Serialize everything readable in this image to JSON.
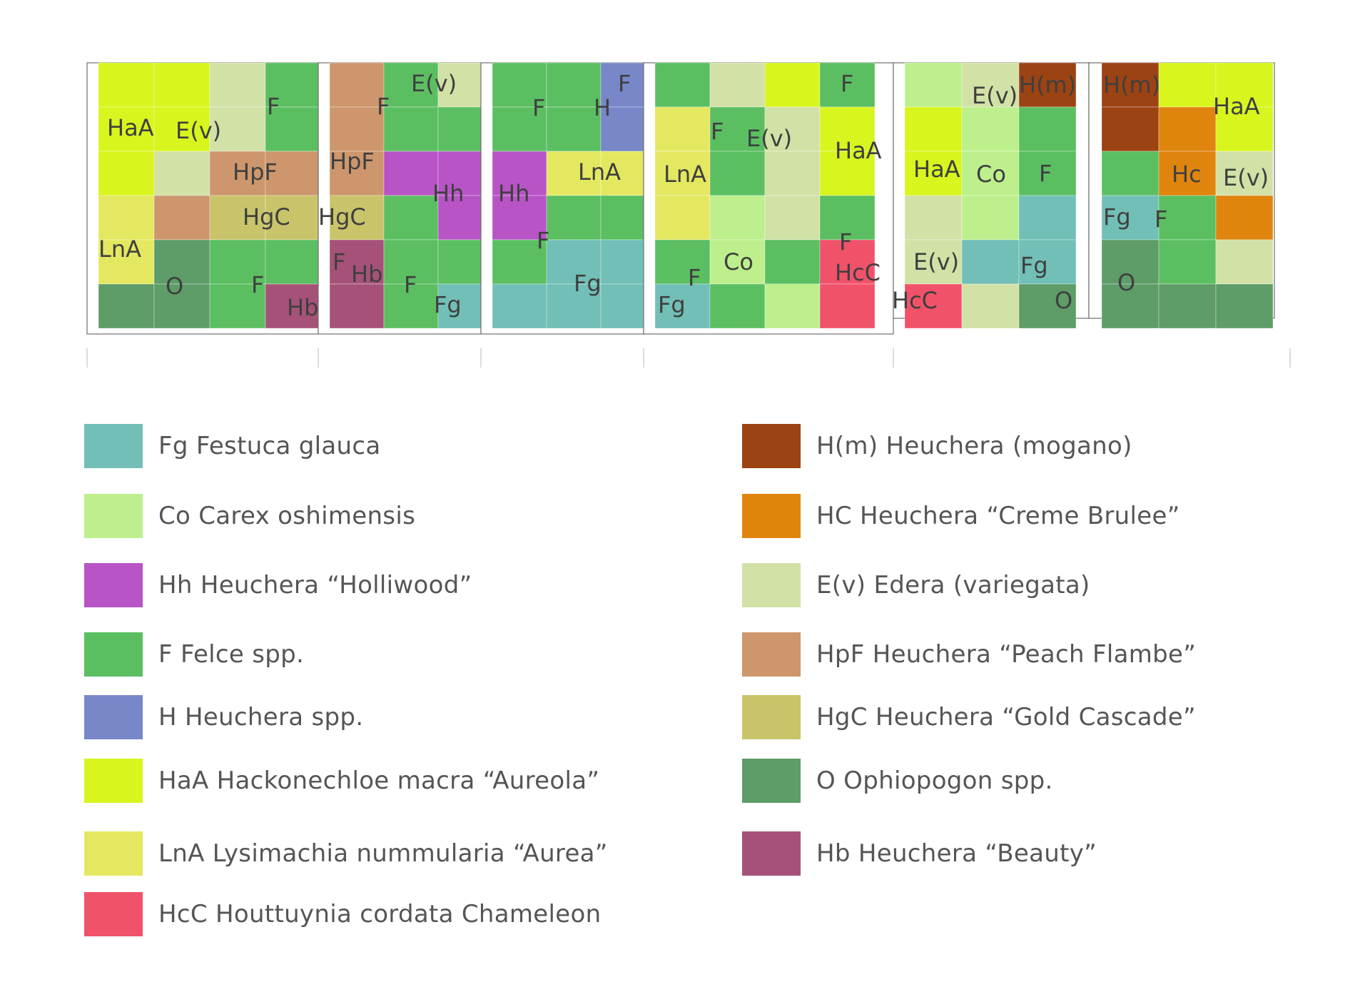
{
  "colors": {
    "Fg": "#72bfb7",
    "Co": "#bdf08c",
    "Hh": "#b854c6",
    "F": "#5bbf62",
    "H": "#7887c8",
    "HaA": "#d8f51e",
    "LnA": "#e4e860",
    "HcC": "#f0526a",
    "Hm": "#9c4313",
    "Hc": "#df850e",
    "Ev": "#d2e1a6",
    "HpF": "#cd966c",
    "HgC": "#c9c46a",
    "O": "#5e9c68",
    "Hb": "#a65278"
  },
  "modules": [
    {
      "cells": [
        {
          "c": "HaA",
          "r": 0,
          "k": 0
        },
        {
          "c": "HaA",
          "r": 0,
          "k": 1
        },
        {
          "c": "Ev",
          "r": 0,
          "k": 2
        },
        {
          "c": "F",
          "r": 0,
          "k": 3
        },
        {
          "c": "HaA",
          "r": 1,
          "k": 0
        },
        {
          "c": "HaA",
          "r": 1,
          "k": 1
        },
        {
          "c": "Ev",
          "r": 1,
          "k": 2
        },
        {
          "c": "F",
          "r": 1,
          "k": 3
        },
        {
          "c": "HaA",
          "r": 2,
          "k": 0
        },
        {
          "c": "Ev",
          "r": 2,
          "k": 1
        },
        {
          "c": "HpF",
          "r": 2,
          "k": 2
        },
        {
          "c": "HpF",
          "r": 2,
          "k": 3
        },
        {
          "c": "LnA",
          "r": 3,
          "k": 0
        },
        {
          "c": "HpF",
          "r": 3,
          "k": 1
        },
        {
          "c": "HgC",
          "r": 3,
          "k": 2
        },
        {
          "c": "HgC",
          "r": 3,
          "k": 3
        },
        {
          "c": "LnA",
          "r": 4,
          "k": 0
        },
        {
          "c": "O",
          "r": 4,
          "k": 1
        },
        {
          "c": "F",
          "r": 4,
          "k": 2
        },
        {
          "c": "F",
          "r": 4,
          "k": 3
        },
        {
          "c": "O",
          "r": 5,
          "k": 0
        },
        {
          "c": "O",
          "r": 5,
          "k": 1
        },
        {
          "c": "F",
          "r": 5,
          "k": 2
        },
        {
          "c": "Hb",
          "r": 5,
          "k": 3
        }
      ],
      "labels": [
        "HaA",
        "E(v)",
        "F",
        "HpF",
        "HgC",
        "LnA",
        "O",
        "F",
        "Hb"
      ]
    },
    {
      "cells": [
        {
          "c": "HpF",
          "r": 0,
          "k": 0
        },
        {
          "c": "F",
          "r": 0,
          "k": 1
        },
        {
          "c": "Ev",
          "r": 0,
          "k": 2
        },
        {
          "c": "HpF",
          "r": 1,
          "k": 0
        },
        {
          "c": "F",
          "r": 1,
          "k": 1
        },
        {
          "c": "F",
          "r": 1,
          "k": 2
        },
        {
          "c": "HpF",
          "r": 2,
          "k": 0
        },
        {
          "c": "Hh",
          "r": 2,
          "k": 1
        },
        {
          "c": "Hh",
          "r": 2,
          "k": 2
        },
        {
          "c": "HgC",
          "r": 3,
          "k": 0
        },
        {
          "c": "F",
          "r": 3,
          "k": 1
        },
        {
          "c": "Hh",
          "r": 3,
          "k": 2
        },
        {
          "c": "Hb",
          "r": 4,
          "k": 0
        },
        {
          "c": "F",
          "r": 4,
          "k": 1
        },
        {
          "c": "F",
          "r": 4,
          "k": 2
        },
        {
          "c": "Hb",
          "r": 5,
          "k": 0
        },
        {
          "c": "F",
          "r": 5,
          "k": 1
        },
        {
          "c": "Fg",
          "r": 5,
          "k": 2
        }
      ],
      "labels": [
        "E(v)",
        "F",
        "HpF",
        "Hh",
        "HgC",
        "F",
        "Hb",
        "F",
        "Fg"
      ]
    },
    {
      "cells": [
        {
          "c": "F",
          "r": 0,
          "k": 0
        },
        {
          "c": "F",
          "r": 0,
          "k": 1
        },
        {
          "c": "H",
          "r": 0,
          "k": 2
        },
        {
          "c": "F",
          "r": 1,
          "k": 0
        },
        {
          "c": "F",
          "r": 1,
          "k": 1
        },
        {
          "c": "H",
          "r": 1,
          "k": 2
        },
        {
          "c": "Hh",
          "r": 2,
          "k": 0
        },
        {
          "c": "LnA",
          "r": 2,
          "k": 1
        },
        {
          "c": "LnA",
          "r": 2,
          "k": 2
        },
        {
          "c": "Hh",
          "r": 3,
          "k": 0
        },
        {
          "c": "F",
          "r": 3,
          "k": 1
        },
        {
          "c": "F",
          "r": 3,
          "k": 2
        },
        {
          "c": "F",
          "r": 4,
          "k": 0
        },
        {
          "c": "Fg",
          "r": 4,
          "k": 1
        },
        {
          "c": "Fg",
          "r": 4,
          "k": 2
        },
        {
          "c": "Fg",
          "r": 5,
          "k": 0
        },
        {
          "c": "Fg",
          "r": 5,
          "k": 1
        },
        {
          "c": "Fg",
          "r": 5,
          "k": 2
        }
      ],
      "labels": [
        "F",
        "F",
        "H",
        "LnA",
        "Hh",
        "F",
        "Fg"
      ]
    },
    {
      "cells": [
        {
          "c": "F",
          "r": 0,
          "k": 0
        },
        {
          "c": "Ev",
          "r": 0,
          "k": 1
        },
        {
          "c": "HaA",
          "r": 0,
          "k": 2
        },
        {
          "c": "F",
          "r": 0,
          "k": 3
        },
        {
          "c": "LnA",
          "r": 1,
          "k": 0
        },
        {
          "c": "F",
          "r": 1,
          "k": 1
        },
        {
          "c": "Ev",
          "r": 1,
          "k": 2
        },
        {
          "c": "HaA",
          "r": 1,
          "k": 3
        },
        {
          "c": "LnA",
          "r": 2,
          "k": 0
        },
        {
          "c": "F",
          "r": 2,
          "k": 1
        },
        {
          "c": "Ev",
          "r": 2,
          "k": 2
        },
        {
          "c": "HaA",
          "r": 2,
          "k": 3
        },
        {
          "c": "LnA",
          "r": 3,
          "k": 0
        },
        {
          "c": "Co",
          "r": 3,
          "k": 1
        },
        {
          "c": "Ev",
          "r": 3,
          "k": 2
        },
        {
          "c": "F",
          "r": 3,
          "k": 3
        },
        {
          "c": "F",
          "r": 4,
          "k": 0
        },
        {
          "c": "Co",
          "r": 4,
          "k": 1
        },
        {
          "c": "F",
          "r": 4,
          "k": 2
        },
        {
          "c": "HcC",
          "r": 4,
          "k": 3
        },
        {
          "c": "Fg",
          "r": 5,
          "k": 0
        },
        {
          "c": "F",
          "r": 5,
          "k": 1
        },
        {
          "c": "Co",
          "r": 5,
          "k": 2
        },
        {
          "c": "HcC",
          "r": 5,
          "k": 3
        }
      ],
      "labels": [
        "F",
        "F",
        "E(v)",
        "HaA",
        "LnA",
        "F",
        "Co",
        "HcC",
        "F",
        "Fg"
      ]
    },
    {
      "cells": [
        {
          "c": "Co",
          "r": 0,
          "k": 0
        },
        {
          "c": "Ev",
          "r": 0,
          "k": 1
        },
        {
          "c": "Hm",
          "r": 0,
          "k": 2
        },
        {
          "c": "HaA",
          "r": 1,
          "k": 0
        },
        {
          "c": "Co",
          "r": 1,
          "k": 1
        },
        {
          "c": "F",
          "r": 1,
          "k": 2
        },
        {
          "c": "HaA",
          "r": 2,
          "k": 0
        },
        {
          "c": "Co",
          "r": 2,
          "k": 1
        },
        {
          "c": "F",
          "r": 2,
          "k": 2
        },
        {
          "c": "Ev",
          "r": 3,
          "k": 0
        },
        {
          "c": "Co",
          "r": 3,
          "k": 1
        },
        {
          "c": "Fg",
          "r": 3,
          "k": 2
        },
        {
          "c": "Ev",
          "r": 4,
          "k": 0
        },
        {
          "c": "Fg",
          "r": 4,
          "k": 1
        },
        {
          "c": "Fg",
          "r": 4,
          "k": 2
        },
        {
          "c": "HcC",
          "r": 5,
          "k": 0
        },
        {
          "c": "Ev",
          "r": 5,
          "k": 1
        },
        {
          "c": "O",
          "r": 5,
          "k": 2
        }
      ],
      "labels": [
        "E(v)",
        "H(m)",
        "HaA",
        "Co",
        "F",
        "E(v)",
        "Fg",
        "HcC",
        "O"
      ]
    },
    {
      "cells": [
        {
          "c": "Hm",
          "r": 0,
          "k": 0
        },
        {
          "c": "HaA",
          "r": 0,
          "k": 1
        },
        {
          "c": "HaA",
          "r": 0,
          "k": 2
        },
        {
          "c": "Hm",
          "r": 1,
          "k": 0
        },
        {
          "c": "Hc",
          "r": 1,
          "k": 1
        },
        {
          "c": "HaA",
          "r": 1,
          "k": 2
        },
        {
          "c": "F",
          "r": 2,
          "k": 0
        },
        {
          "c": "Hc",
          "r": 2,
          "k": 1
        },
        {
          "c": "Ev",
          "r": 2,
          "k": 2
        },
        {
          "c": "Fg",
          "r": 3,
          "k": 0
        },
        {
          "c": "F",
          "r": 3,
          "k": 1
        },
        {
          "c": "Hc",
          "r": 3,
          "k": 2
        },
        {
          "c": "O",
          "r": 4,
          "k": 0
        },
        {
          "c": "F",
          "r": 4,
          "k": 1
        },
        {
          "c": "Ev",
          "r": 4,
          "k": 2
        },
        {
          "c": "O",
          "r": 5,
          "k": 0
        },
        {
          "c": "O",
          "r": 5,
          "k": 1
        },
        {
          "c": "O",
          "r": 5,
          "k": 2
        }
      ],
      "labels": [
        "H(m)",
        "HaA",
        "Hc",
        "E(v)",
        "Fg",
        "F",
        "O"
      ]
    }
  ],
  "legend": [
    {
      "key": "Fg",
      "text": "Fg Festuca glauca"
    },
    {
      "key": "Co",
      "text": "Co Carex oshimensis"
    },
    {
      "key": "Hh",
      "text": "Hh Heuchera “Holliwood”"
    },
    {
      "key": "F",
      "text": "F Felce spp."
    },
    {
      "key": "H",
      "text": "H Heuchera spp."
    },
    {
      "key": "HaA",
      "text": "HaA Hackonechloe macra “Aureola”"
    },
    {
      "key": "LnA",
      "text": "LnA Lysimachia nummularia “Aurea”"
    },
    {
      "key": "HcC",
      "text": "HcC Houttuynia cordata Chameleon"
    },
    {
      "key": "Hm",
      "text": "H(m) Heuchera (mogano)"
    },
    {
      "key": "Hc",
      "text": "HC Heuchera “Creme Brulee”"
    },
    {
      "key": "Ev",
      "text": "E(v) Edera (variegata)"
    },
    {
      "key": "HpF",
      "text": "HpF Heuchera “Peach Flambe”"
    },
    {
      "key": "HgC",
      "text": "HgC Heuchera “Gold Cascade”"
    },
    {
      "key": "O",
      "text": "O Ophiopogon spp."
    },
    {
      "key": "Hb",
      "text": "Hb Heuchera “Beauty”"
    }
  ]
}
